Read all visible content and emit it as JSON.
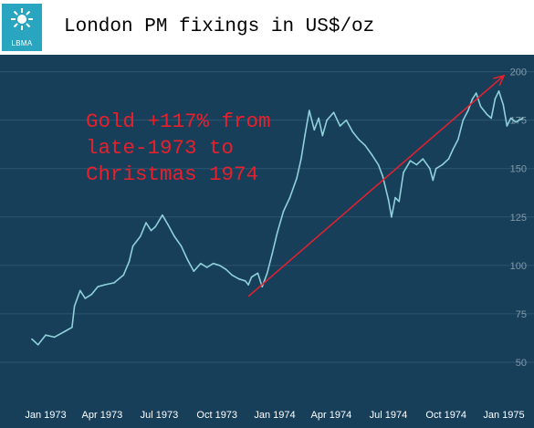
{
  "logo": {
    "text": "LBMA",
    "icon": "sun-burst-icon"
  },
  "title": "London PM fixings in US$/oz",
  "annotation": "Gold +117% from\nlate-1973 to\nChristmas 1974",
  "colors": {
    "background": "#173f5a",
    "line": "#8fd0da",
    "grid": "#2c5570",
    "axis_text": "#ffffff",
    "annotation": "#e8202c",
    "trend_arrow": "#e8202c",
    "logo": "#2aa5bf"
  },
  "chart_data": {
    "type": "line",
    "title": "London PM fixings in US$/oz",
    "xlabel": "",
    "ylabel": "",
    "ylim": [
      25,
      205
    ],
    "grid": true,
    "y_axis_position": "right",
    "x_tick_labels": [
      "Jan 1973",
      "Apr 1973",
      "Jul 1973",
      "Oct 1973",
      "Jan 1974",
      "Apr 1974",
      "Jul 1974",
      "Oct 1974",
      "Jan 1975"
    ],
    "x_tick_dates": [
      "1973-01-01",
      "1973-04-01",
      "1973-07-01",
      "1973-10-01",
      "1974-01-01",
      "1974-04-01",
      "1974-07-01",
      "1974-10-01",
      "1975-01-01"
    ],
    "y_ticks": [
      50,
      75,
      100,
      125,
      150,
      175,
      200
    ],
    "series": [
      {
        "values": [
          [
            "1972-12-10",
            62
          ],
          [
            "1972-12-20",
            59
          ],
          [
            "1973-01-01",
            64
          ],
          [
            "1973-01-15",
            63
          ],
          [
            "1973-02-01",
            66
          ],
          [
            "1973-02-12",
            68
          ],
          [
            "1973-02-16",
            79
          ],
          [
            "1973-02-25",
            87
          ],
          [
            "1973-03-05",
            83
          ],
          [
            "1973-03-15",
            85
          ],
          [
            "1973-03-25",
            89
          ],
          [
            "1973-04-05",
            90
          ],
          [
            "1973-04-20",
            91
          ],
          [
            "1973-05-05",
            95
          ],
          [
            "1973-05-14",
            102
          ],
          [
            "1973-05-20",
            110
          ],
          [
            "1973-06-01",
            115
          ],
          [
            "1973-06-10",
            122
          ],
          [
            "1973-06-18",
            118
          ],
          [
            "1973-06-25",
            120
          ],
          [
            "1973-07-06",
            126
          ],
          [
            "1973-07-15",
            121
          ],
          [
            "1973-07-25",
            115
          ],
          [
            "1973-08-05",
            110
          ],
          [
            "1973-08-15",
            103
          ],
          [
            "1973-08-25",
            97
          ],
          [
            "1973-09-05",
            101
          ],
          [
            "1973-09-15",
            99
          ],
          [
            "1973-09-25",
            101
          ],
          [
            "1973-10-05",
            100
          ],
          [
            "1973-10-15",
            98
          ],
          [
            "1973-10-25",
            95
          ],
          [
            "1973-11-05",
            93
          ],
          [
            "1973-11-15",
            92
          ],
          [
            "1973-11-20",
            90
          ],
          [
            "1973-11-25",
            94
          ],
          [
            "1973-12-05",
            96
          ],
          [
            "1973-12-12",
            89
          ],
          [
            "1973-12-20",
            96
          ],
          [
            "1973-12-28",
            106
          ],
          [
            "1974-01-05",
            117
          ],
          [
            "1974-01-15",
            128
          ],
          [
            "1974-01-25",
            135
          ],
          [
            "1974-02-05",
            145
          ],
          [
            "1974-02-12",
            155
          ],
          [
            "1974-02-18",
            167
          ],
          [
            "1974-02-25",
            180
          ],
          [
            "1974-03-05",
            170
          ],
          [
            "1974-03-12",
            176
          ],
          [
            "1974-03-18",
            167
          ],
          [
            "1974-03-25",
            175
          ],
          [
            "1974-04-05",
            179
          ],
          [
            "1974-04-15",
            172
          ],
          [
            "1974-04-25",
            175
          ],
          [
            "1974-05-05",
            169
          ],
          [
            "1974-05-15",
            165
          ],
          [
            "1974-05-25",
            162
          ],
          [
            "1974-06-05",
            157
          ],
          [
            "1974-06-15",
            152
          ],
          [
            "1974-06-22",
            146
          ],
          [
            "1974-07-01",
            134
          ],
          [
            "1974-07-06",
            125
          ],
          [
            "1974-07-12",
            135
          ],
          [
            "1974-07-18",
            133
          ],
          [
            "1974-07-25",
            148
          ],
          [
            "1974-08-05",
            154
          ],
          [
            "1974-08-15",
            152
          ],
          [
            "1974-08-25",
            155
          ],
          [
            "1974-09-05",
            150
          ],
          [
            "1974-09-10",
            144
          ],
          [
            "1974-09-15",
            150
          ],
          [
            "1974-09-25",
            152
          ],
          [
            "1974-10-05",
            155
          ],
          [
            "1974-10-12",
            160
          ],
          [
            "1974-10-20",
            165
          ],
          [
            "1974-10-28",
            175
          ],
          [
            "1974-11-05",
            180
          ],
          [
            "1974-11-12",
            186
          ],
          [
            "1974-11-18",
            189
          ],
          [
            "1974-11-25",
            182
          ],
          [
            "1974-12-05",
            178
          ],
          [
            "1974-12-12",
            176
          ],
          [
            "1974-12-18",
            186
          ],
          [
            "1974-12-24",
            190
          ],
          [
            "1974-12-31",
            183
          ],
          [
            "1975-01-06",
            172
          ],
          [
            "1975-01-12",
            176
          ],
          [
            "1975-01-20",
            174
          ],
          [
            "1975-01-31",
            176
          ]
        ]
      }
    ],
    "trend_arrow": {
      "from": [
        "1973-11-20",
        84
      ],
      "to": [
        "1975-01-01",
        198
      ]
    }
  }
}
